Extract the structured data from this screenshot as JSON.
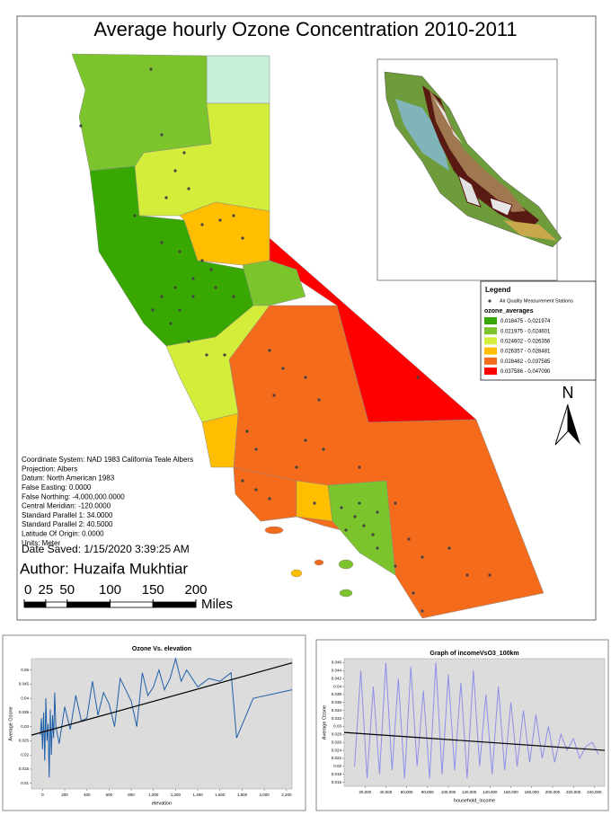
{
  "map": {
    "title": "Average hourly Ozone Concentration 2010-2011",
    "legend": {
      "title": "Legend",
      "station_label": "Air Quality Measurement Stations",
      "field": "ozone_averages",
      "classes": [
        {
          "label": "0.018475 - 0.021974",
          "color": "#38a800"
        },
        {
          "label": "0.021975 - 0.024601",
          "color": "#7cc42c"
        },
        {
          "label": "0.024602 - 0.026356",
          "color": "#d4ec3a"
        },
        {
          "label": "0.026357 - 0.028481",
          "color": "#ffbe00"
        },
        {
          "label": "0.028482 - 0.037585",
          "color": "#f56b1c"
        },
        {
          "label": "0.037586 - 0.047090",
          "color": "#ff0000"
        }
      ]
    },
    "north": "N",
    "coordinate_info": [
      "Coordinate System: NAD 1983 California Teale Albers",
      "Projection: Albers",
      "Datum: North American 1983",
      "False Easting: 0.0000",
      "False Northing: -4,000,000.0000",
      "Central Meridian: -120.0000",
      "Standard Parallel 1: 34.0000",
      "Standard Parallel 2: 40.5000",
      "Latitude Of Origin: 0.0000",
      "Units: Meter"
    ],
    "date_saved": "Date Saved: 1/15/2020 3:39:25 AM",
    "author": "Author: Huzaifa Mukhtiar",
    "scale": {
      "ticks": [
        0,
        25,
        50,
        100,
        150,
        200
      ],
      "unit": "Miles"
    }
  },
  "chart_data": [
    {
      "type": "line",
      "title": "Ozone Vs. elevation",
      "x_label": "elevation",
      "y_label": "Average Ozone",
      "xlim": [
        -100,
        2250
      ],
      "ylim": [
        0.008,
        0.054
      ],
      "xticks": [
        0,
        200,
        400,
        600,
        800,
        {
          "value": 1000,
          "label": "1,000"
        },
        {
          "value": 1200,
          "label": "1,200"
        },
        {
          "value": 1400,
          "label": "1,400"
        },
        {
          "value": 1600,
          "label": "1,600"
        },
        {
          "value": 1800,
          "label": "1,800"
        },
        {
          "value": 2000,
          "label": "2,000"
        },
        {
          "value": 2200,
          "label": "2,200"
        }
      ],
      "yticks": [
        0.01,
        0.015,
        0.02,
        0.025,
        0.03,
        0.035,
        0.04,
        0.045,
        0.05
      ],
      "series": [
        {
          "color": "#1f5fa8",
          "x": [
            -20,
            -10,
            0,
            10,
            20,
            30,
            40,
            50,
            60,
            70,
            80,
            90,
            100,
            110,
            120,
            150,
            200,
            250,
            300,
            350,
            400,
            450,
            500,
            550,
            600,
            650,
            700,
            800,
            850,
            900,
            950,
            1000,
            1050,
            1100,
            1150,
            1200,
            1250,
            1300,
            1400,
            1500,
            1600,
            1700,
            1750,
            1900,
            2250
          ],
          "values": [
            0.027,
            0.033,
            0.022,
            0.035,
            0.018,
            0.04,
            0.025,
            0.031,
            0.012,
            0.036,
            0.02,
            0.034,
            0.026,
            0.042,
            0.03,
            0.024,
            0.037,
            0.029,
            0.041,
            0.032,
            0.033,
            0.046,
            0.034,
            0.042,
            0.038,
            0.03,
            0.047,
            0.039,
            0.03,
            0.049,
            0.041,
            0.044,
            0.05,
            0.043,
            0.047,
            0.054,
            0.046,
            0.05,
            0.044,
            0.047,
            0.046,
            0.049,
            0.026,
            0.04,
            0.043
          ]
        }
      ],
      "trend": {
        "color": "#000000",
        "x": [
          -100,
          2250
        ],
        "values": [
          0.027,
          0.0525
        ]
      }
    },
    {
      "type": "line",
      "title": "Graph of incomeVsO3_100km",
      "x_label": "household_income",
      "y_label": "Average Ozone",
      "xlim": [
        0,
        250000
      ],
      "ylim": [
        0.015,
        0.047
      ],
      "xticks": [
        {
          "value": 20000,
          "label": "20,000"
        },
        {
          "value": 40000,
          "label": "40,000"
        },
        {
          "value": 60000,
          "label": "60,000"
        },
        {
          "value": 80000,
          "label": "80,000"
        },
        {
          "value": 100000,
          "label": "100,000"
        },
        {
          "value": 120000,
          "label": "120,000"
        },
        {
          "value": 140000,
          "label": "140,000"
        },
        {
          "value": 160000,
          "label": "160,000"
        },
        {
          "value": 180000,
          "label": "180,000"
        },
        {
          "value": 200000,
          "label": "200,000"
        },
        {
          "value": 220000,
          "label": "220,000"
        },
        {
          "value": 240000,
          "label": "240,000"
        }
      ],
      "yticks": [
        0.016,
        0.018,
        0.02,
        0.022,
        0.024,
        0.026,
        0.028,
        0.03,
        0.032,
        0.034,
        0.036,
        0.038,
        0.04,
        0.042,
        0.044,
        0.046
      ],
      "series": [
        {
          "color": "#8f8fe8",
          "x": [
            10000,
            16000,
            22000,
            28000,
            34000,
            40000,
            46000,
            52000,
            58000,
            64000,
            70000,
            76000,
            82000,
            88000,
            94000,
            100000,
            106000,
            112000,
            118000,
            124000,
            130000,
            136000,
            142000,
            148000,
            154000,
            160000,
            166000,
            172000,
            178000,
            184000,
            190000,
            196000,
            202000,
            208000,
            214000,
            220000,
            226000,
            232000,
            238000,
            244000
          ],
          "values": [
            0.02,
            0.044,
            0.017,
            0.04,
            0.018,
            0.046,
            0.019,
            0.042,
            0.017,
            0.045,
            0.02,
            0.039,
            0.017,
            0.046,
            0.018,
            0.043,
            0.019,
            0.041,
            0.017,
            0.044,
            0.02,
            0.038,
            0.018,
            0.04,
            0.019,
            0.036,
            0.02,
            0.034,
            0.021,
            0.033,
            0.022,
            0.03,
            0.021,
            0.028,
            0.024,
            0.027,
            0.022,
            0.025,
            0.026,
            0.023
          ]
        }
      ],
      "trend": {
        "color": "#000000",
        "x": [
          0,
          250000
        ],
        "values": [
          0.0285,
          0.024
        ]
      }
    }
  ]
}
